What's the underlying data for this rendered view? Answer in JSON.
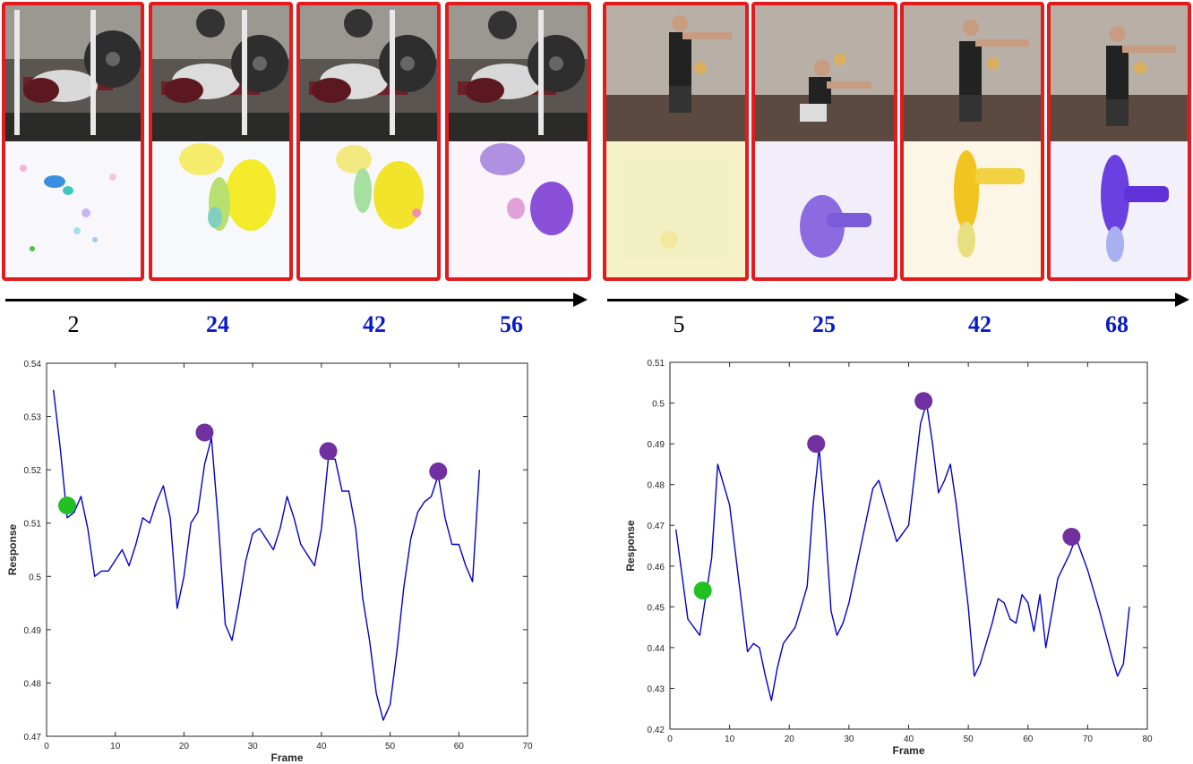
{
  "sequences": [
    {
      "name": "bench-press",
      "frames": [
        {
          "label": "2",
          "key": false
        },
        {
          "label": "24",
          "key": true
        },
        {
          "label": "42",
          "key": true
        },
        {
          "label": "56",
          "key": true
        }
      ]
    },
    {
      "name": "squat",
      "frames": [
        {
          "label": "5",
          "key": false
        },
        {
          "label": "25",
          "key": true
        },
        {
          "label": "42",
          "key": true
        },
        {
          "label": "68",
          "key": true
        }
      ]
    }
  ],
  "colors": {
    "frame_border": "#e41a1c",
    "key_label": "#0a1acb",
    "curve": "#0000cc",
    "start_marker": "#22c022",
    "key_marker": "#7030a0"
  },
  "chart_data": [
    {
      "type": "line",
      "title": "",
      "xlabel": "Frame",
      "ylabel": "Response",
      "xlim": [
        0,
        70
      ],
      "ylim": [
        0.47,
        0.54
      ],
      "xticks": [
        "0",
        "10",
        "20",
        "30",
        "40",
        "50",
        "60",
        "70"
      ],
      "yticks": [
        "0.47",
        "0.48",
        "0.49",
        "0.5",
        "0.51",
        "0.52",
        "0.53",
        "0.54"
      ],
      "grid": false,
      "series": [
        {
          "x": [
            1,
            2,
            3,
            4,
            5,
            6,
            7,
            8,
            9,
            10,
            11,
            12,
            13,
            14,
            15,
            16,
            17,
            18,
            19,
            20,
            21,
            22,
            23,
            24,
            25,
            26,
            27,
            28,
            29,
            30,
            31,
            32,
            33,
            34,
            35,
            36,
            37,
            38,
            39,
            40,
            41,
            42,
            43,
            44,
            45,
            46,
            47,
            48,
            49,
            50,
            51,
            52,
            53,
            54,
            55,
            56,
            57,
            58,
            59,
            60,
            61,
            62,
            63
          ],
          "y": [
            0.535,
            0.524,
            0.511,
            0.512,
            0.515,
            0.509,
            0.5,
            0.501,
            0.501,
            0.503,
            0.505,
            0.502,
            0.506,
            0.511,
            0.51,
            0.514,
            0.517,
            0.511,
            0.494,
            0.5,
            0.51,
            0.512,
            0.521,
            0.526,
            0.51,
            0.491,
            0.488,
            0.495,
            0.503,
            0.508,
            0.509,
            0.507,
            0.505,
            0.509,
            0.515,
            0.511,
            0.506,
            0.504,
            0.502,
            0.509,
            0.522,
            0.522,
            0.516,
            0.516,
            0.509,
            0.496,
            0.488,
            0.478,
            0.473,
            0.476,
            0.486,
            0.498,
            0.507,
            0.512,
            0.514,
            0.515,
            0.519,
            0.511,
            0.506,
            0.506,
            0.502,
            0.499,
            0.52
          ]
        }
      ],
      "markers": [
        {
          "x": 3,
          "y": 0.5133,
          "kind": "start"
        },
        {
          "x": 23,
          "y": 0.527,
          "kind": "key"
        },
        {
          "x": 41,
          "y": 0.5235,
          "kind": "key"
        },
        {
          "x": 57,
          "y": 0.5197,
          "kind": "key"
        }
      ]
    },
    {
      "type": "line",
      "title": "",
      "xlabel": "Frame",
      "ylabel": "Response",
      "xlim": [
        0,
        80
      ],
      "ylim": [
        0.42,
        0.51
      ],
      "xticks": [
        "0",
        "10",
        "20",
        "30",
        "40",
        "50",
        "60",
        "70",
        "80"
      ],
      "yticks": [
        "0.42",
        "0.43",
        "0.44",
        "0.45",
        "0.46",
        "0.47",
        "0.48",
        "0.49",
        "0.5",
        "0.51"
      ],
      "grid": false,
      "series": [
        {
          "x": [
            1,
            3,
            5,
            7,
            8,
            10,
            12,
            13,
            14,
            15,
            16,
            17,
            18,
            19,
            21,
            23,
            24,
            25,
            26,
            27,
            28,
            29,
            30,
            32,
            34,
            35,
            36,
            38,
            40,
            42,
            43,
            44,
            45,
            46,
            47,
            48,
            50,
            51,
            52,
            53,
            54,
            55,
            56,
            57,
            58,
            59,
            60,
            61,
            62,
            63,
            65,
            67,
            68,
            70,
            72,
            74,
            75,
            76,
            77
          ],
          "y": [
            0.469,
            0.447,
            0.443,
            0.462,
            0.485,
            0.475,
            0.451,
            0.439,
            0.441,
            0.44,
            0.433,
            0.427,
            0.435,
            0.441,
            0.445,
            0.455,
            0.475,
            0.489,
            0.471,
            0.449,
            0.443,
            0.446,
            0.451,
            0.465,
            0.479,
            0.481,
            0.476,
            0.466,
            0.47,
            0.495,
            0.5,
            0.49,
            0.478,
            0.481,
            0.485,
            0.475,
            0.45,
            0.433,
            0.436,
            0.441,
            0.446,
            0.452,
            0.451,
            0.447,
            0.446,
            0.453,
            0.451,
            0.444,
            0.453,
            0.44,
            0.457,
            0.463,
            0.467,
            0.459,
            0.449,
            0.438,
            0.433,
            0.436,
            0.45
          ]
        }
      ],
      "markers": [
        {
          "x": 5.5,
          "y": 0.454,
          "kind": "start"
        },
        {
          "x": 24.5,
          "y": 0.49,
          "kind": "key"
        },
        {
          "x": 42.5,
          "y": 0.5005,
          "kind": "key"
        },
        {
          "x": 67.3,
          "y": 0.4672,
          "kind": "key"
        }
      ]
    }
  ]
}
